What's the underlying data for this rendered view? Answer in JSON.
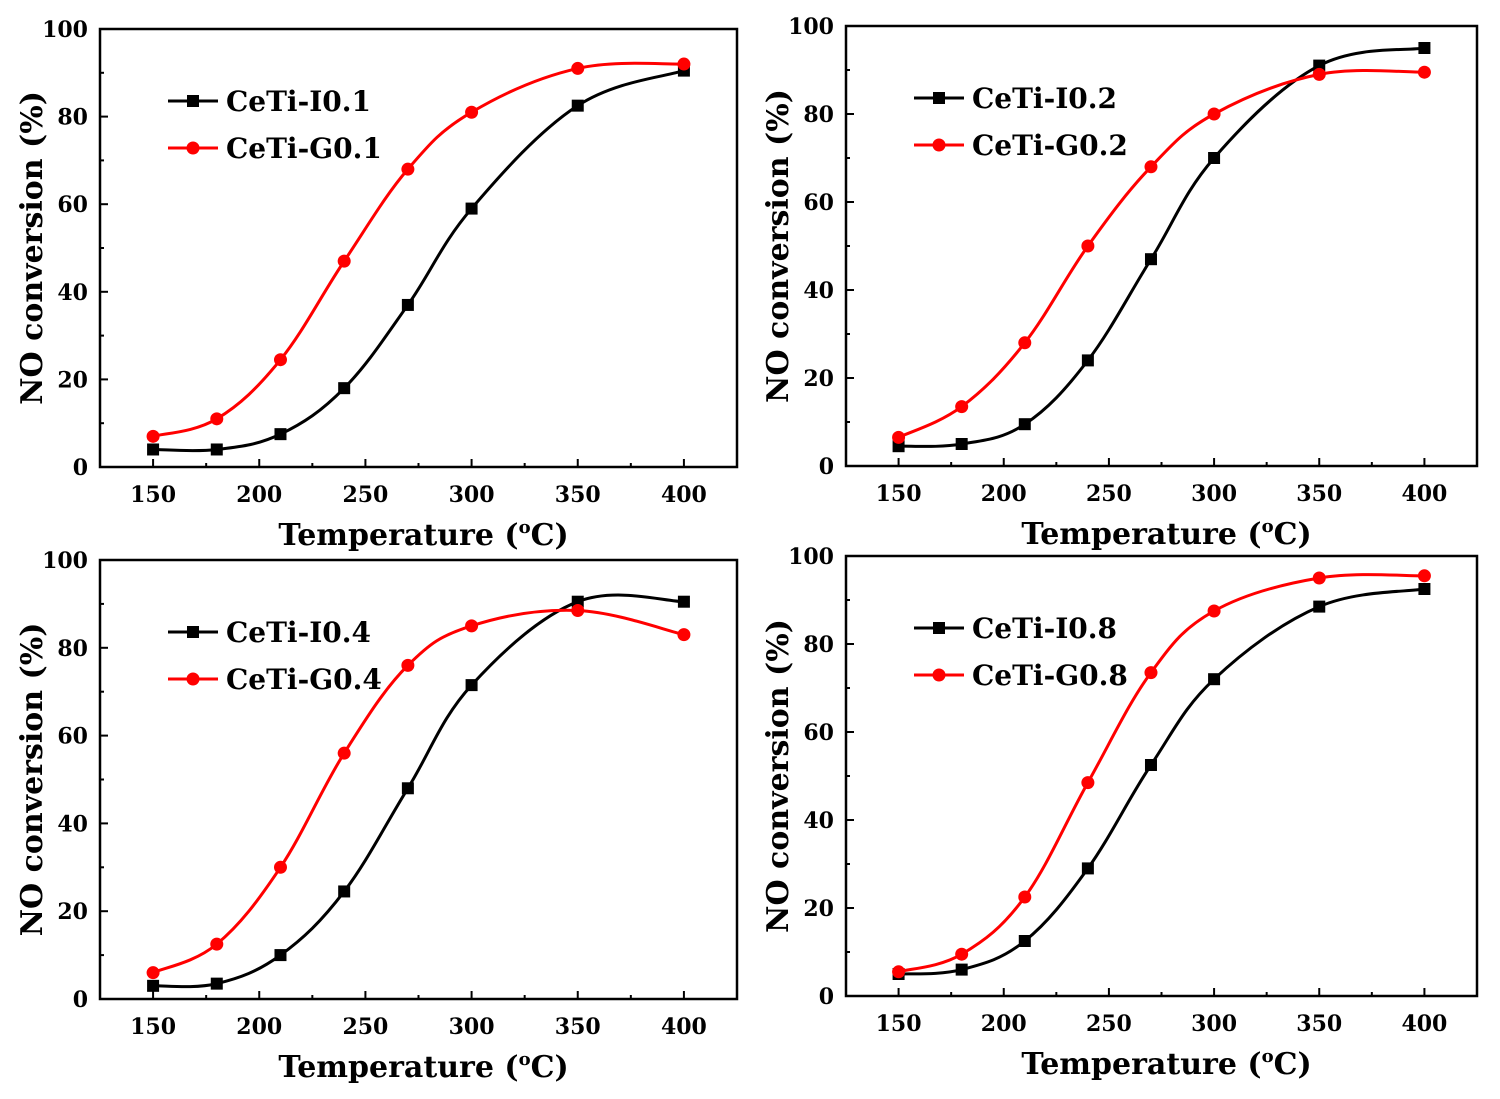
{
  "figure": {
    "colors": {
      "series_I": "#000000",
      "series_G": "#ff0000",
      "axis": "#000000"
    }
  },
  "chart_data": [
    {
      "type": "line",
      "panel": "top-left",
      "title": "",
      "xlabel": "Temperature (",
      "xlabel_sup": "o",
      "xlabel_tail": "C)",
      "ylabel": "NO conversion (%)",
      "xlim": [
        125,
        425
      ],
      "ylim": [
        0,
        100
      ],
      "xticks": [
        150,
        200,
        250,
        300,
        350,
        400
      ],
      "yticks": [
        0,
        20,
        40,
        60,
        80,
        100
      ],
      "legend_position": "top-left",
      "x": [
        150,
        180,
        210,
        240,
        270,
        300,
        350,
        400
      ],
      "series": [
        {
          "name": "CeTi-I0.1",
          "color": "#000000",
          "marker": "square",
          "values": [
            4,
            4,
            7.5,
            18,
            37,
            59,
            82.5,
            90.5
          ]
        },
        {
          "name": "CeTi-G0.1",
          "color": "#ff0000",
          "marker": "circle",
          "values": [
            7,
            11,
            24.5,
            47,
            68,
            81,
            91,
            92
          ]
        }
      ]
    },
    {
      "type": "line",
      "panel": "top-right",
      "title": "",
      "xlabel": "Temperature (",
      "xlabel_sup": "o",
      "xlabel_tail": "C)",
      "ylabel": "NO conversion (%)",
      "xlim": [
        125,
        425
      ],
      "ylim": [
        0,
        100
      ],
      "xticks": [
        150,
        200,
        250,
        300,
        350,
        400
      ],
      "yticks": [
        0,
        20,
        40,
        60,
        80,
        100
      ],
      "legend_position": "top-left",
      "x": [
        150,
        180,
        210,
        240,
        270,
        300,
        350,
        400
      ],
      "series": [
        {
          "name": "CeTi-I0.2",
          "color": "#000000",
          "marker": "square",
          "values": [
            4.5,
            5,
            9.5,
            24,
            47,
            70,
            91,
            95
          ]
        },
        {
          "name": "CeTi-G0.2",
          "color": "#ff0000",
          "marker": "circle",
          "values": [
            6.5,
            13.5,
            28,
            50,
            68,
            80,
            89,
            89.5
          ]
        }
      ]
    },
    {
      "type": "line",
      "panel": "bottom-left",
      "title": "",
      "xlabel": "Temperature (",
      "xlabel_sup": "o",
      "xlabel_tail": "C)",
      "ylabel": "NO conversion (%)",
      "xlim": [
        125,
        425
      ],
      "ylim": [
        0,
        100
      ],
      "xticks": [
        150,
        200,
        250,
        300,
        350,
        400
      ],
      "yticks": [
        0,
        20,
        40,
        60,
        80,
        100
      ],
      "legend_position": "top-left",
      "x": [
        150,
        180,
        210,
        240,
        270,
        300,
        350,
        400
      ],
      "series": [
        {
          "name": "CeTi-I0.4",
          "color": "#000000",
          "marker": "square",
          "values": [
            3,
            3.5,
            10,
            24.5,
            48,
            71.5,
            90.5,
            90.5
          ]
        },
        {
          "name": "CeTi-G0.4",
          "color": "#ff0000",
          "marker": "circle",
          "values": [
            6,
            12.5,
            30,
            56,
            76,
            85,
            88.5,
            83
          ]
        }
      ]
    },
    {
      "type": "line",
      "panel": "bottom-right",
      "title": "",
      "xlabel": "Temperature (",
      "xlabel_sup": "o",
      "xlabel_tail": "C)",
      "ylabel": "NO conversion (%)",
      "xlim": [
        125,
        425
      ],
      "ylim": [
        0,
        100
      ],
      "xticks": [
        150,
        200,
        250,
        300,
        350,
        400
      ],
      "yticks": [
        0,
        20,
        40,
        60,
        80,
        100
      ],
      "legend_position": "top-left",
      "x": [
        150,
        180,
        210,
        240,
        270,
        300,
        350,
        400
      ],
      "series": [
        {
          "name": "CeTi-I0.8",
          "color": "#000000",
          "marker": "square",
          "values": [
            5,
            6,
            12.5,
            29,
            52.5,
            72,
            88.5,
            92.5
          ]
        },
        {
          "name": "CeTi-G0.8",
          "color": "#ff0000",
          "marker": "circle",
          "values": [
            5.5,
            9.5,
            22.5,
            48.5,
            73.5,
            87.5,
            95,
            95.5
          ]
        }
      ]
    }
  ]
}
